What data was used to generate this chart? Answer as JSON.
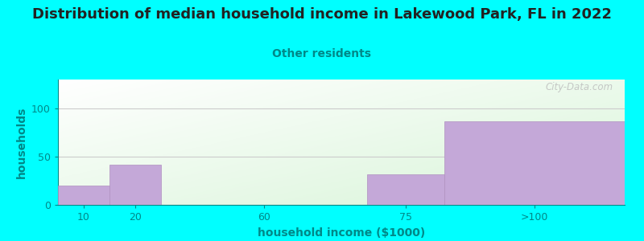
{
  "title": "Distribution of median household income in Lakewood Park, FL in 2022",
  "subtitle": "Other residents",
  "xlabel": "household income ($1000)",
  "ylabel": "households",
  "background_color": "#00FFFF",
  "bar_color": "#C4A8D8",
  "bar_edge_color": "#B090C0",
  "title_color": "#222222",
  "subtitle_color": "#008888",
  "axis_label_color": "#008888",
  "tick_color": "#008888",
  "grid_color": "#CCCCCC",
  "watermark": "City-Data.com",
  "values": [
    20,
    42,
    0,
    32,
    87
  ],
  "bar_lefts": [
    0,
    10,
    20,
    60,
    75
  ],
  "bar_widths": [
    10,
    10,
    40,
    15,
    35
  ],
  "xtick_positions": [
    5,
    15,
    40,
    67.5,
    92.5
  ],
  "xtick_labels": [
    "10",
    "20",
    "60",
    "75",
    ">100"
  ],
  "xlim": [
    0,
    110
  ],
  "ylim": [
    0,
    130
  ],
  "yticks": [
    0,
    50,
    100
  ],
  "title_fontsize": 13,
  "subtitle_fontsize": 10,
  "label_fontsize": 10,
  "tick_fontsize": 9
}
